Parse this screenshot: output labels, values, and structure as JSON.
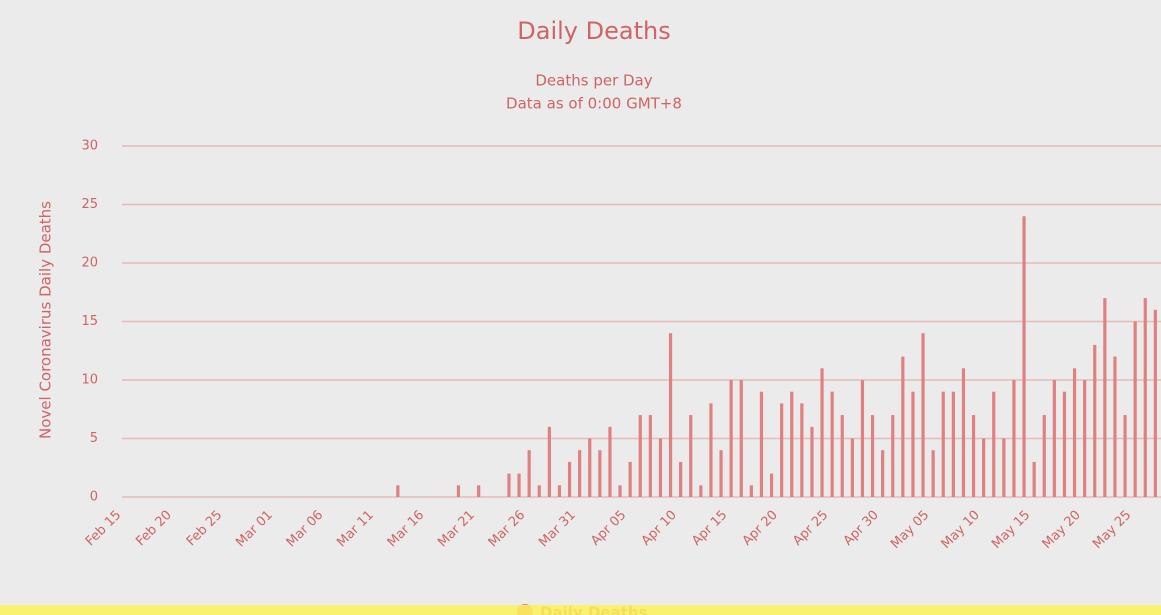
{
  "chart_data": {
    "type": "bar",
    "title": "Daily Deaths",
    "subtitle": [
      "Deaths per Day",
      "Data as of 0:00 GMT+8"
    ],
    "y_label": "Novel Coronavirus Daily Deaths",
    "categories": [
      "Feb 15",
      null,
      null,
      null,
      null,
      "Feb 20",
      null,
      null,
      null,
      null,
      "Feb 25",
      null,
      null,
      null,
      null,
      "Mar 01",
      null,
      null,
      null,
      null,
      "Mar 06",
      null,
      null,
      null,
      null,
      "Mar 11",
      null,
      null,
      null,
      null,
      "Mar 16",
      null,
      null,
      null,
      null,
      "Mar 21",
      null,
      null,
      null,
      null,
      "Mar 26",
      null,
      null,
      null,
      null,
      "Mar 31",
      null,
      null,
      null,
      null,
      "Apr 05",
      null,
      null,
      null,
      null,
      "Apr 10",
      null,
      null,
      null,
      null,
      "Apr 15",
      null,
      null,
      null,
      null,
      "Apr 20",
      null,
      null,
      null,
      null,
      "Apr 25",
      null,
      null,
      null,
      null,
      "Apr 30",
      null,
      null,
      null,
      null,
      "May 05",
      null,
      null,
      null,
      null,
      "May 10",
      null,
      null,
      null,
      null,
      "May 15",
      null,
      null,
      null,
      null,
      "May 20",
      null,
      null,
      null,
      null,
      "May 25",
      null,
      null,
      null
    ],
    "series": [
      {
        "name": "Daily Deaths",
        "color": "#e08080",
        "values": [
          0,
          0,
          0,
          0,
          0,
          0,
          0,
          0,
          0,
          0,
          0,
          0,
          0,
          0,
          0,
          0,
          0,
          0,
          0,
          0,
          0,
          0,
          0,
          0,
          0,
          0,
          0,
          0,
          1,
          0,
          0,
          0,
          0,
          0,
          1,
          0,
          1,
          0,
          0,
          2,
          2,
          4,
          1,
          6,
          1,
          3,
          4,
          5,
          4,
          6,
          1,
          3,
          7,
          7,
          5,
          14,
          3,
          7,
          1,
          8,
          4,
          10,
          10,
          1,
          9,
          2,
          8,
          9,
          8,
          6,
          11,
          9,
          7,
          5,
          10,
          7,
          4,
          7,
          12,
          9,
          14,
          4,
          9,
          9,
          11,
          7,
          5,
          9,
          5,
          10,
          24,
          3,
          7,
          10,
          9,
          11,
          10,
          13,
          17,
          12,
          7,
          15,
          17,
          16
        ]
      }
    ],
    "ylim": [
      0,
      30
    ],
    "yticks": [
      0,
      5,
      10,
      15,
      20,
      25,
      30
    ],
    "grid": true
  }
}
